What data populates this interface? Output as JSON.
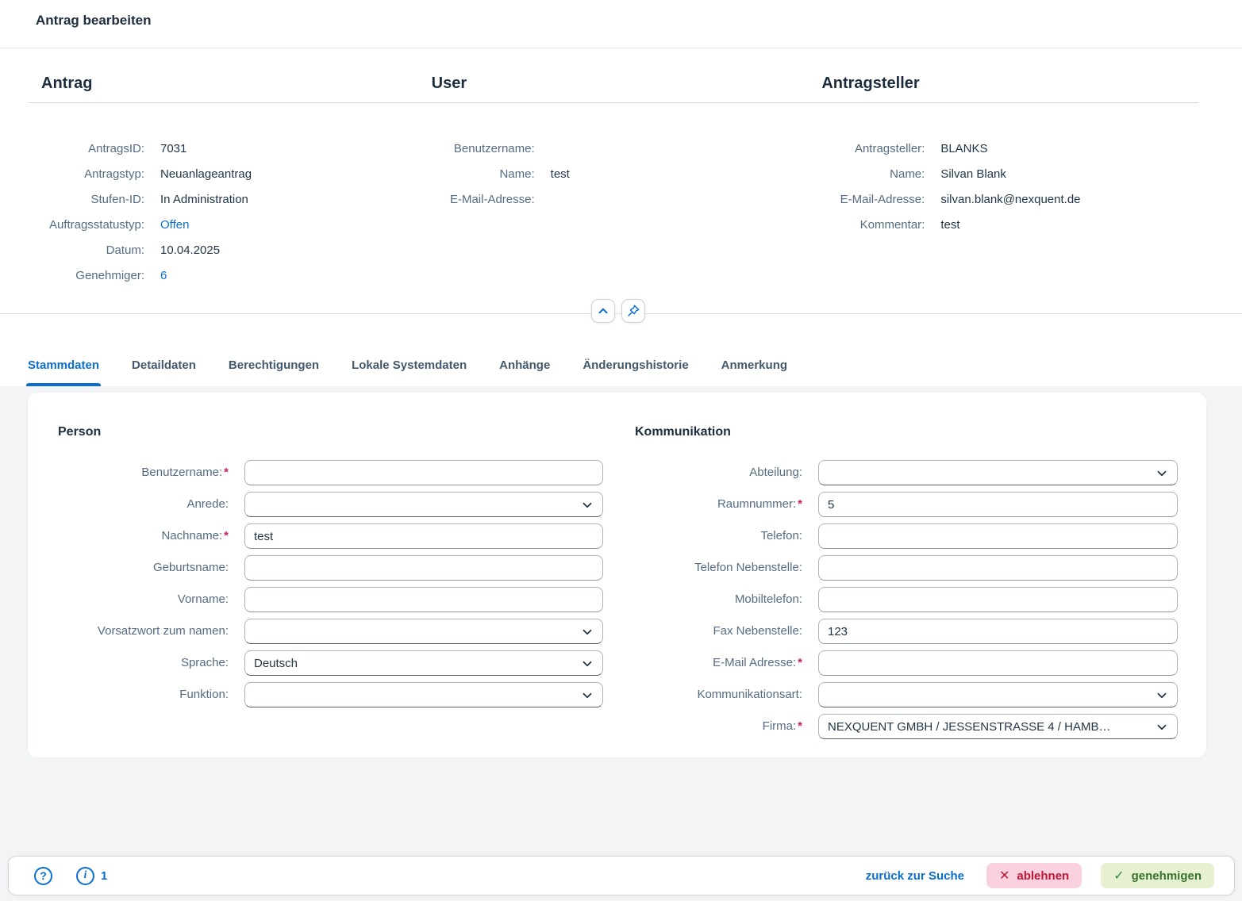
{
  "title_bar": {
    "title": "Antrag bearbeiten"
  },
  "header": {
    "sections": [
      {
        "title": "Antrag",
        "rows": [
          {
            "label": "AntragsID:",
            "value": "7031",
            "link": false
          },
          {
            "label": "Antragstyp:",
            "value": "Neuanlageantrag",
            "link": false
          },
          {
            "label": "Stufen-ID:",
            "value": "In Administration",
            "link": false
          },
          {
            "label": "Auftragsstatustyp:",
            "value": "Offen",
            "link": true
          },
          {
            "label": "Datum:",
            "value": "10.04.2025",
            "link": false
          },
          {
            "label": "Genehmiger:",
            "value": "6",
            "link": true
          }
        ]
      },
      {
        "title": "User",
        "rows": [
          {
            "label": "Benutzername:",
            "value": "",
            "link": false
          },
          {
            "label": "Name:",
            "value": "test",
            "link": false
          },
          {
            "label": "E-Mail-Adresse:",
            "value": "",
            "link": false
          }
        ]
      },
      {
        "title": "Antragsteller",
        "rows": [
          {
            "label": "Antragsteller:",
            "value": "BLANKS",
            "link": false
          },
          {
            "label": "Name:",
            "value": "Silvan Blank",
            "link": false
          },
          {
            "label": "E-Mail-Adresse:",
            "value": "silvan.blank@nexquent.de",
            "link": false
          },
          {
            "label": "Kommentar:",
            "value": "test",
            "link": false
          }
        ]
      }
    ]
  },
  "tabs": {
    "items": [
      "Stammdaten",
      "Detaildaten",
      "Berechtigungen",
      "Lokale Systemdaten",
      "Anhänge",
      "Änderungshistorie",
      "Anmerkung"
    ],
    "active_index": 0
  },
  "form": {
    "columns": [
      {
        "title": "Person",
        "side": "left",
        "fields": [
          {
            "label": "Benutzername:",
            "required": true,
            "type": "input",
            "value": ""
          },
          {
            "label": "Anrede:",
            "required": false,
            "type": "select",
            "value": ""
          },
          {
            "label": "Nachname:",
            "required": true,
            "type": "input",
            "value": "test"
          },
          {
            "label": "Geburtsname:",
            "required": false,
            "type": "input",
            "value": ""
          },
          {
            "label": "Vorname:",
            "required": false,
            "type": "input",
            "value": ""
          },
          {
            "label": "Vorsatzwort zum namen:",
            "required": false,
            "type": "select",
            "value": ""
          },
          {
            "label": "Sprache:",
            "required": false,
            "type": "select",
            "value": "Deutsch"
          },
          {
            "label": "Funktion:",
            "required": false,
            "type": "select",
            "value": ""
          }
        ]
      },
      {
        "title": "Kommunikation",
        "side": "right",
        "fields": [
          {
            "label": "Abteilung:",
            "required": false,
            "type": "select",
            "value": ""
          },
          {
            "label": "Raumnummer:",
            "required": true,
            "type": "input",
            "value": "5"
          },
          {
            "label": "Telefon:",
            "required": false,
            "type": "input",
            "value": ""
          },
          {
            "label": "Telefon Nebenstelle:",
            "required": false,
            "type": "input",
            "value": ""
          },
          {
            "label": "Mobiltelefon:",
            "required": false,
            "type": "input",
            "value": ""
          },
          {
            "label": "Fax Nebenstelle:",
            "required": false,
            "type": "input",
            "value": "123"
          },
          {
            "label": "E-Mail Adresse:",
            "required": true,
            "type": "input",
            "value": ""
          },
          {
            "label": "Kommunikationsart:",
            "required": false,
            "type": "select",
            "value": ""
          },
          {
            "label": "Firma:",
            "required": true,
            "type": "select",
            "value": "NEXQUENT GMBH / JESSENSTRASSE 4 / HAMB…"
          }
        ]
      }
    ]
  },
  "footer": {
    "help_glyph": "?",
    "info_glyph": "i",
    "info_count": "1",
    "back_label": "zurück zur Suche",
    "reject_label": "ablehnen",
    "approve_label": "genehmigen",
    "colors": {
      "link": "#0a6ed1",
      "reject_text": "#c01634",
      "reject_bg": "#fad2df",
      "approve_text": "#36722d",
      "approve_bg": "#e6f1d2"
    }
  }
}
